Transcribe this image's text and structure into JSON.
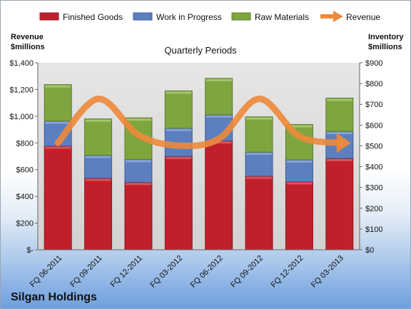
{
  "chart_data": {
    "type": "bar",
    "subtype": "stacked-bar-with-line",
    "title": "Quarterly Periods",
    "company": "Silgan Holdings",
    "categories": [
      "FQ 06-2011",
      "FQ 09-2011",
      "FQ 12-2011",
      "FQ 03-2012",
      "FQ 06-2012",
      "FQ 09-2012",
      "FQ 12-2012",
      "FQ 03-2013"
    ],
    "series": [
      {
        "name": "Finished Goods",
        "axis": "right",
        "color": "#c0202a",
        "values": [
          500,
          345,
          325,
          450,
          525,
          355,
          328,
          440
        ]
      },
      {
        "name": "Work in Progress",
        "axis": "right",
        "color": "#5b7fbf",
        "values": [
          120,
          110,
          110,
          135,
          125,
          115,
          105,
          130
        ]
      },
      {
        "name": "Raw Materials",
        "axis": "right",
        "color": "#7fa53e",
        "values": [
          175,
          175,
          200,
          180,
          175,
          170,
          170,
          160
        ]
      }
    ],
    "line": {
      "name": "Revenue",
      "axis": "left",
      "color": "#ee8a3a",
      "values": [
        800,
        1130,
        860,
        780,
        830,
        1130,
        850,
        800
      ]
    },
    "left_axis": {
      "title_line1": "Revenue",
      "title_line2": "$millions",
      "ylim": [
        0,
        1400
      ],
      "ticks": [
        0,
        200,
        400,
        600,
        800,
        1000,
        1200,
        1400
      ],
      "tick_labels": [
        "$-",
        "$200",
        "$400",
        "$600",
        "$800",
        "$1,000",
        "$1,200",
        "$1,400"
      ]
    },
    "right_axis": {
      "title_line1": "Inventory",
      "title_line2": "$millions",
      "ylim": [
        0,
        900
      ],
      "ticks": [
        0,
        100,
        200,
        300,
        400,
        500,
        600,
        700,
        800,
        900
      ],
      "tick_labels": [
        "$0",
        "$100",
        "$200",
        "$300",
        "$400",
        "$500",
        "$600",
        "$700",
        "$800",
        "$900"
      ]
    },
    "legend_position": "top",
    "grid": false
  }
}
